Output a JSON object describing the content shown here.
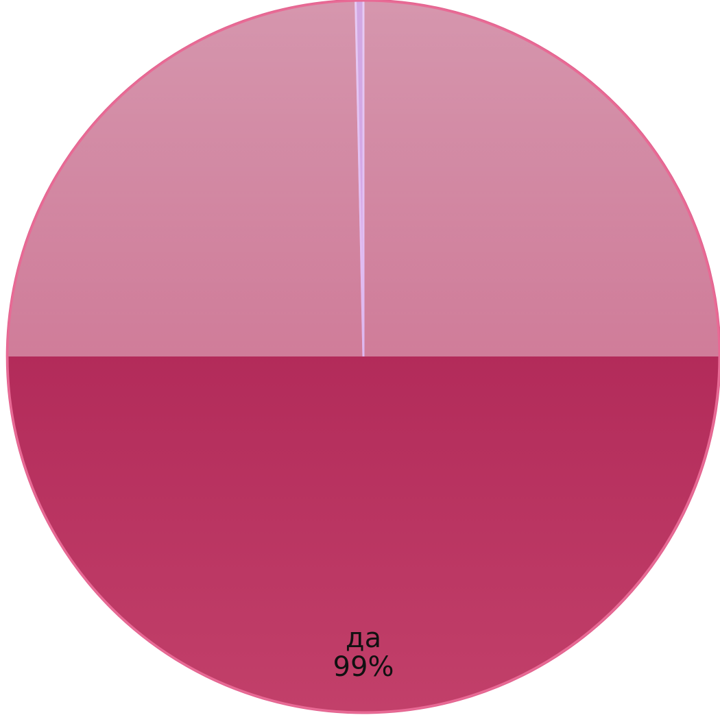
{
  "chart_data": {
    "type": "pie",
    "categories": [
      "да",
      ""
    ],
    "values": [
      99,
      1
    ],
    "labels": [
      {
        "category": "да",
        "percent": "99%"
      }
    ],
    "colors": [
      "#b21f52",
      "#b35cd0"
    ],
    "legend": "none",
    "title": ""
  }
}
